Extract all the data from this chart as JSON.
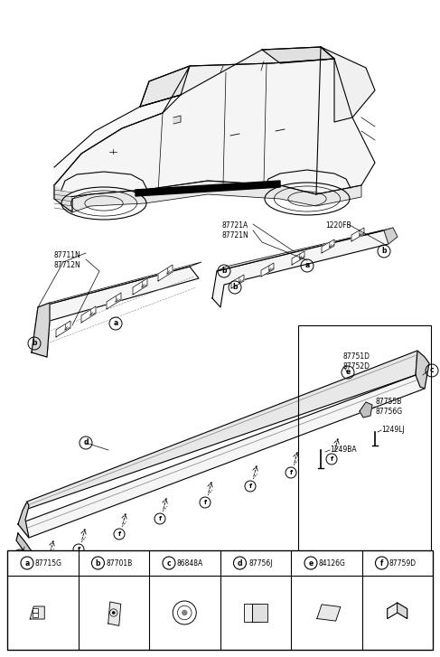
{
  "bg_color": "#ffffff",
  "fig_width": 4.87,
  "fig_height": 7.27,
  "dpi": 100,
  "part_labels": [
    {
      "letter": "a",
      "part_num": "87715G"
    },
    {
      "letter": "b",
      "part_num": "87701B"
    },
    {
      "letter": "c",
      "part_num": "86848A"
    },
    {
      "letter": "d",
      "part_num": "87756J"
    },
    {
      "letter": "e",
      "part_num": "84126G"
    },
    {
      "letter": "f",
      "part_num": "87759D"
    }
  ],
  "callout_texts": {
    "87721AN": "87721A\n87721N",
    "1220FB": "1220FB",
    "87711N": "87711N\n87712N",
    "87751D": "87751D\n87752D",
    "87755B": "87755B\n87756G",
    "1249LJ": "1249LJ",
    "1249BA": "1249BA"
  }
}
